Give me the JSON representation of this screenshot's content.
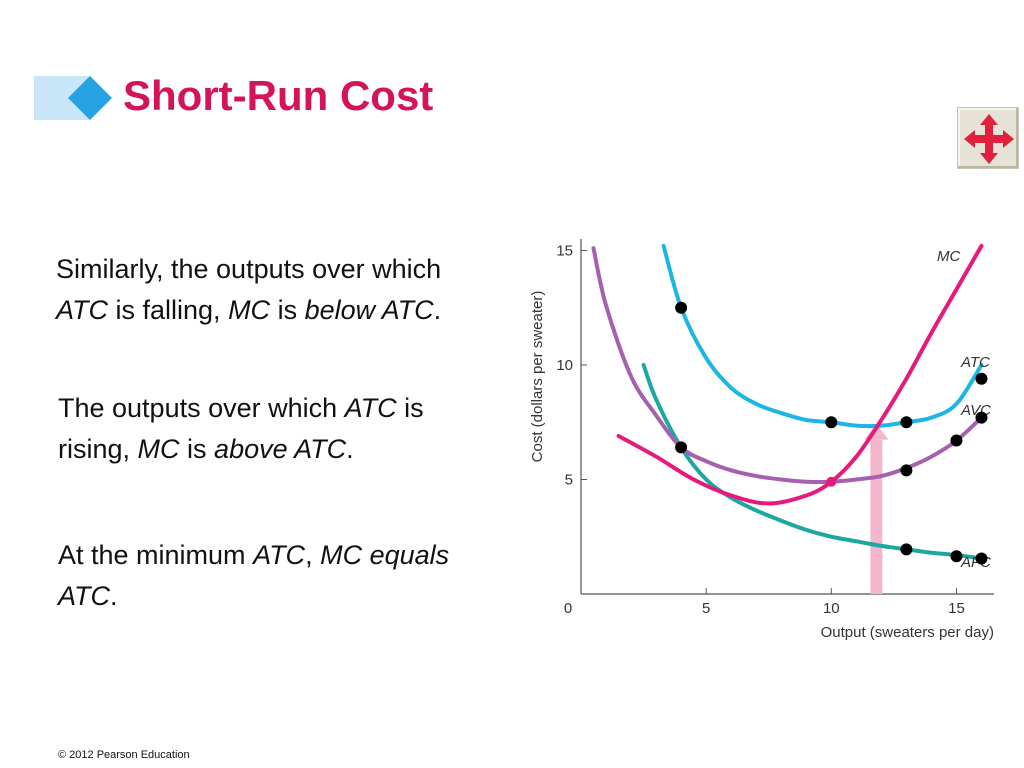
{
  "slide": {
    "title": "Short-Run Cost",
    "colors": {
      "title": "#d4145a",
      "title_bar": "#c8e6f8",
      "title_diamond": "#27a3e3",
      "nav_arrow": "#e0203c"
    },
    "nav_icon": "four-way-arrow-icon",
    "paragraphs": [
      [
        {
          "t": "Similarly, the outputs over ",
          "i": false
        },
        {
          "t": "which ",
          "i": false
        },
        {
          "t": "ATC",
          "i": true
        },
        {
          "t": " is falling, ",
          "i": false
        },
        {
          "t": "MC",
          "i": true
        },
        {
          "t": " is ",
          "i": false
        },
        {
          "t": "below ATC",
          "i": true
        },
        {
          "t": ".",
          "i": false
        }
      ],
      [
        {
          "t": "The outputs over which ",
          "i": false
        },
        {
          "t": "ATC",
          "i": true
        },
        {
          "t": " is rising, ",
          "i": false
        },
        {
          "t": "MC",
          "i": true
        },
        {
          "t": " is ",
          "i": false
        },
        {
          "t": "above ATC",
          "i": true
        },
        {
          "t": ".",
          "i": false
        }
      ],
      [
        {
          "t": "At the minimum ",
          "i": false
        },
        {
          "t": "ATC",
          "i": true
        },
        {
          "t": ", ",
          "i": false
        },
        {
          "t": "MC equals ATC",
          "i": true
        },
        {
          "t": ".",
          "i": false
        }
      ]
    ],
    "copyright": "© 2012 Pearson Education"
  },
  "chart_data": {
    "type": "line",
    "xlabel": "Output (sweaters per day)",
    "ylabel": "Cost (dollars per sweater)",
    "xlim": [
      0,
      16.5
    ],
    "ylim": [
      0,
      15.5
    ],
    "x_ticks": [
      0,
      5,
      10,
      15
    ],
    "y_ticks": [
      5,
      10,
      15
    ],
    "grid": false,
    "series": [
      {
        "name": "MC",
        "color": "#e6197d",
        "x": [
          1.5,
          3,
          4.5,
          6,
          7.5,
          9,
          10,
          11,
          12,
          13,
          14,
          15,
          16
        ],
        "y": [
          6.9,
          6.0,
          5.0,
          4.3,
          3.95,
          4.3,
          4.9,
          6.0,
          7.6,
          9.4,
          11.4,
          13.3,
          15.2
        ]
      },
      {
        "name": "ATC",
        "color": "#1bb5e6",
        "x": [
          3.3,
          4,
          5,
          6,
          7,
          8,
          9,
          10,
          11,
          12,
          13,
          14,
          15,
          16
        ],
        "y": [
          15.2,
          12.5,
          10.3,
          9.0,
          8.3,
          7.9,
          7.6,
          7.5,
          7.35,
          7.35,
          7.5,
          7.7,
          8.3,
          10.0
        ]
      },
      {
        "name": "AVC",
        "color": "#a560ae",
        "x": [
          0.5,
          1,
          2,
          3,
          4,
          5,
          6,
          7,
          8,
          9,
          10,
          11,
          12,
          13,
          14,
          15,
          16
        ],
        "y": [
          15.1,
          12.6,
          9.5,
          7.8,
          6.4,
          5.8,
          5.4,
          5.15,
          5.0,
          4.9,
          4.9,
          5.0,
          5.15,
          5.5,
          6.0,
          6.7,
          7.7
        ]
      },
      {
        "name": "AFC",
        "color": "#1aa8a0",
        "x": [
          2.5,
          3,
          4,
          5,
          6,
          7,
          8,
          9,
          10,
          11,
          12,
          13,
          14,
          15,
          16
        ],
        "y": [
          10.0,
          8.5,
          6.4,
          5.0,
          4.2,
          3.65,
          3.2,
          2.8,
          2.5,
          2.3,
          2.1,
          1.95,
          1.8,
          1.7,
          1.55
        ]
      }
    ],
    "points": [
      {
        "x": 4,
        "y": 12.5
      },
      {
        "x": 10,
        "y": 7.5
      },
      {
        "x": 13,
        "y": 7.5
      },
      {
        "x": 16,
        "y": 9.4
      },
      {
        "x": 4,
        "y": 6.4
      },
      {
        "x": 13,
        "y": 5.4
      },
      {
        "x": 15,
        "y": 6.7
      },
      {
        "x": 16,
        "y": 7.7
      },
      {
        "x": 13,
        "y": 1.95
      },
      {
        "x": 15,
        "y": 1.65
      },
      {
        "x": 16,
        "y": 1.55
      }
    ],
    "highlight_point": {
      "x": 10,
      "y": 4.9,
      "color": "#e6197d"
    },
    "arrow": {
      "x": 11.8,
      "y_from": 0,
      "y_to": 7.35,
      "color": "#f4b6cc"
    }
  }
}
